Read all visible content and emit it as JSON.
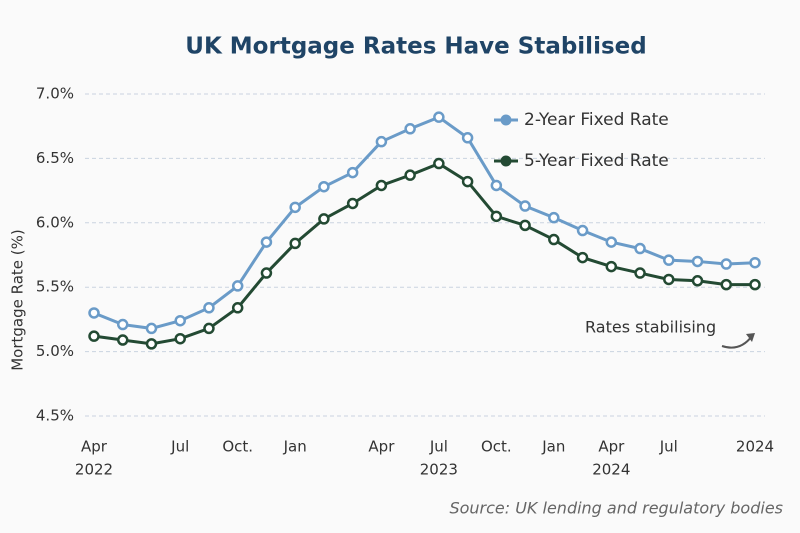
{
  "chart_data": {
    "type": "line",
    "title": "UK Mortgage Rates Have Stabilised",
    "y_label": "Mortgage Rate (%)",
    "categories": [
      "Apr",
      null,
      null,
      "Jul",
      null,
      "Oct.",
      null,
      "Jan",
      null,
      null,
      "Apr",
      null,
      "Jul",
      null,
      "Oct.",
      null,
      "Jan",
      null,
      "Apr",
      null,
      "Jul",
      null,
      null,
      "2024"
    ],
    "year_labels": [
      "2022",
      null,
      null,
      null,
      null,
      null,
      null,
      null,
      null,
      null,
      null,
      null,
      "2023",
      null,
      null,
      null,
      null,
      null,
      "2024",
      null,
      null,
      null,
      null,
      null
    ],
    "series": [
      {
        "name": "2-Year Fixed Rate",
        "color": "#6a9bc8",
        "values": [
          5.3,
          5.21,
          5.18,
          5.24,
          5.34,
          5.51,
          5.85,
          6.12,
          6.28,
          6.39,
          6.63,
          6.73,
          6.82,
          6.66,
          6.29,
          6.13,
          6.04,
          5.94,
          5.85,
          5.8,
          5.71,
          5.7,
          5.68,
          5.69
        ]
      },
      {
        "name": "5-Year Fixed Rate",
        "color": "#234a33",
        "values": [
          5.12,
          5.09,
          5.06,
          5.1,
          5.18,
          5.34,
          5.61,
          5.84,
          6.03,
          6.15,
          6.29,
          6.37,
          6.46,
          6.32,
          6.05,
          5.98,
          5.87,
          5.73,
          5.66,
          5.61,
          5.56,
          5.55,
          5.52,
          5.52
        ]
      }
    ],
    "ylim": [
      4.5,
      7.0
    ],
    "yticks": [
      {
        "value": 4.5,
        "label": "4.5%"
      },
      {
        "value": 5.0,
        "label": "5.0%"
      },
      {
        "value": 5.5,
        "label": "5.5%"
      },
      {
        "value": 6.0,
        "label": "6.0%"
      },
      {
        "value": 6.5,
        "label": "6.5%"
      },
      {
        "value": 7.0,
        "label": "7.0%"
      }
    ],
    "grid": true,
    "legend": "upper right",
    "annotation": "Rates stabilising",
    "source": "Source: UK lending and regulatory bodies"
  }
}
